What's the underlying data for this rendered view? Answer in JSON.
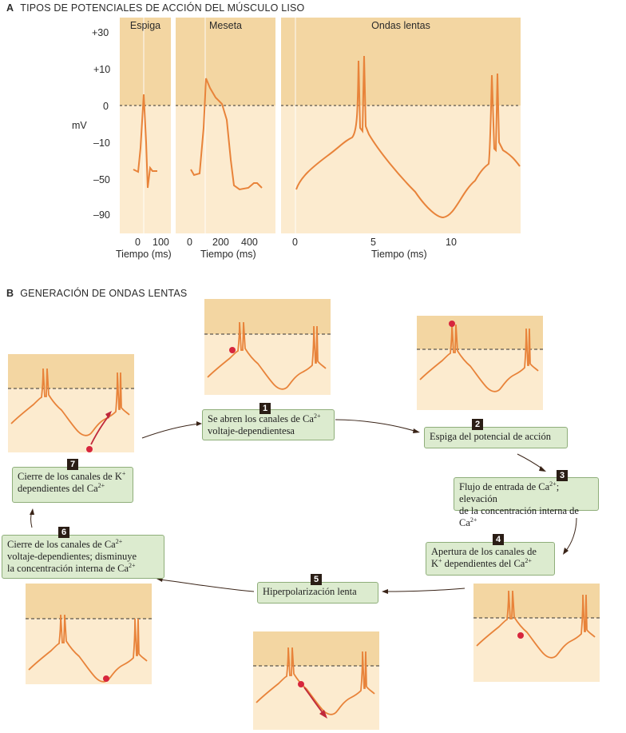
{
  "section_a": {
    "letter": "A",
    "title": "TIPOS DE POTENCIALES DE ACCIÓN DEL MÚSCULO LISO",
    "panels": [
      {
        "label": "Espiga",
        "x_ticks": [
          "0",
          "100"
        ],
        "x_title": "Tiempo (ms)"
      },
      {
        "label": "Meseta",
        "x_ticks": [
          "0",
          "200",
          "400"
        ],
        "x_title": "Tiempo (ms)"
      },
      {
        "label": "Ondas lentas",
        "x_ticks": [
          "0",
          "5",
          "10"
        ],
        "x_title": "Tiempo (ms)"
      }
    ],
    "y_ticks": [
      "+30",
      "+10",
      "0",
      "–10",
      "–50",
      "–90"
    ],
    "y_title": "mV"
  },
  "section_b": {
    "letter": "B",
    "title": "GENERACIÓN DE ONDAS LENTAS",
    "steps": [
      {
        "n": "1",
        "html": "Se abren los canales de Ca<sup>2+</sup><br>voltaje-dependientesa"
      },
      {
        "n": "2",
        "html": "Espiga del potencial de acción"
      },
      {
        "n": "3",
        "html": "Flujo de entrada de Ca<sup>2+</sup>; elevación<br>de la concentración interna de Ca<sup>2+</sup>"
      },
      {
        "n": "4",
        "html": "Apertura de los canales de<br>K<sup>+</sup> dependientes del Ca<sup>2+</sup>"
      },
      {
        "n": "5",
        "html": "Hiperpolarización lenta"
      },
      {
        "n": "6",
        "html": "Cierre de los canales de Ca<sup>2+</sup><br>voltaje-dependientes; disminuye<br>la concentración interna de Ca<sup>2+</sup>"
      },
      {
        "n": "7",
        "html": "Cierre de los canales de K<sup>+</sup><br>dependientes del Ca<sup>2+</sup>"
      }
    ]
  },
  "colors": {
    "upper_band": "#f3d6a2",
    "lower_band": "#fcebcf",
    "trace": "#e8833a",
    "dot": "#d7263d",
    "arrow": "#c0283b",
    "box_fill": "#dcebcf",
    "box_border": "#8fae7a"
  }
}
